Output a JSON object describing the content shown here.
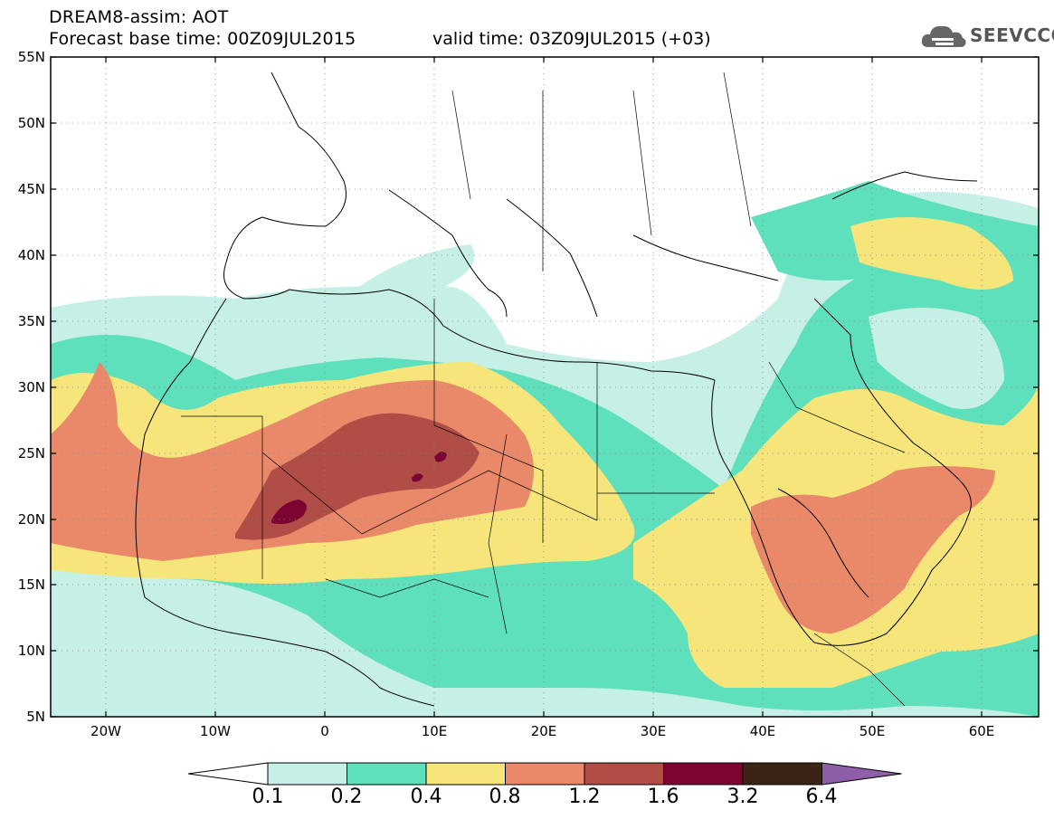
{
  "header": {
    "title": "DREAM8-assim: AOT",
    "forecast_base": "Forecast base time: 00Z09JUL2015",
    "valid_time": "valid time: 03Z09JUL2015 (+03)"
  },
  "logo": {
    "text": "SEEVCCC",
    "icon": "cloud-icon"
  },
  "map": {
    "projection": "lat-lon",
    "lon_range": [
      -25,
      65
    ],
    "lat_range": [
      5,
      55
    ],
    "lat_ticks": [
      "5N",
      "10N",
      "15N",
      "20N",
      "25N",
      "30N",
      "35N",
      "40N",
      "45N",
      "50N",
      "55N"
    ],
    "lon_ticks": [
      "20W",
      "10W",
      "0",
      "10E",
      "20E",
      "30E",
      "40E",
      "50E",
      "60E"
    ],
    "variable": "AOT"
  },
  "colorbar": {
    "levels": [
      "0.1",
      "0.2",
      "0.4",
      "0.8",
      "1.2",
      "1.6",
      "3.2",
      "6.4"
    ],
    "colors": [
      "#ffffff",
      "#c6f0e6",
      "#5ee0bc",
      "#f6e57a",
      "#e9896a",
      "#b04d47",
      "#7d0332",
      "#3b2415",
      "#8e5fa8"
    ]
  }
}
